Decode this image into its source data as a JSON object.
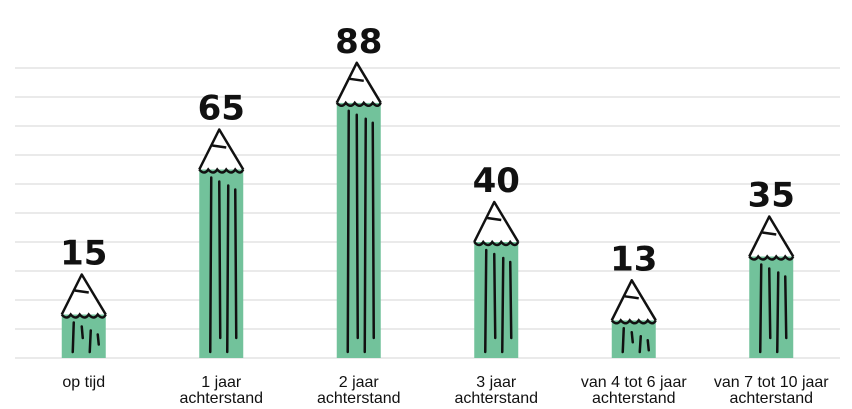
{
  "chart_data": {
    "type": "bar",
    "categories": [
      "op tijd",
      "1 jaar\nachterstand",
      "2 jaar\nachterstand",
      "3 jaar\nachterstand",
      "van 4 tot 6 jaar\nachterstand",
      "van 7 tot 10 jaar\nachterstand"
    ],
    "values": [
      15,
      65,
      88,
      40,
      13,
      35
    ],
    "color": "#72c29b",
    "ylim": [
      0,
      100
    ],
    "yticks": [
      0,
      10,
      20,
      30,
      40,
      50,
      60,
      70,
      80,
      90,
      100
    ],
    "grid": true
  }
}
